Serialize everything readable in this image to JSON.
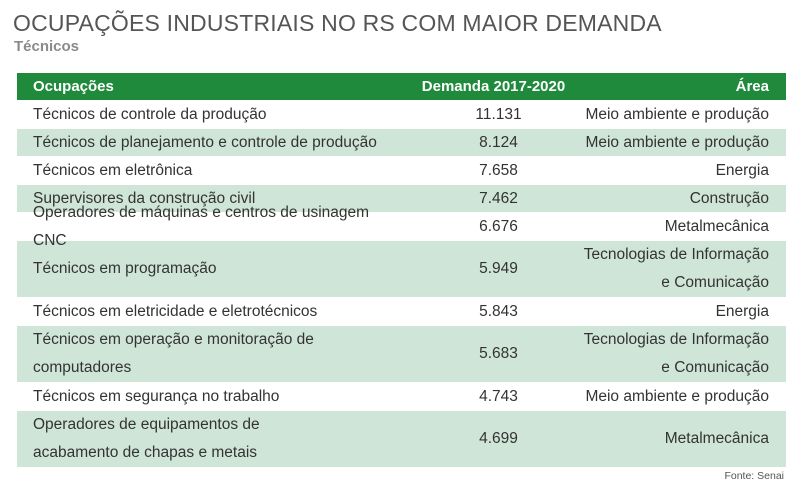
{
  "title": "OCUPAÇÕES INDUSTRIAIS NO RS COM MAIOR DEMANDA",
  "subtitle": "Técnicos",
  "table": {
    "headers": {
      "occupation": "Ocupações",
      "demand": "Demanda 2017-2020",
      "area": "Área"
    },
    "rows": [
      {
        "occupation": [
          "Técnicos de controle da produção"
        ],
        "demand": "11.131",
        "area": [
          "Meio ambiente e produção"
        ]
      },
      {
        "occupation": [
          "Técnicos de planejamento e controle de produção"
        ],
        "demand": "8.124",
        "area": [
          "Meio ambiente e produção"
        ]
      },
      {
        "occupation": [
          "Técnicos em eletrônica"
        ],
        "demand": "7.658",
        "area": [
          "Energia"
        ]
      },
      {
        "occupation": [
          "Supervisores da construção civil"
        ],
        "demand": "7.462",
        "area": [
          "Construção"
        ]
      },
      {
        "occupation": [
          "Operadores de máquinas e centros de usinagem CNC"
        ],
        "demand": "6.676",
        "area": [
          "Metalmecânica"
        ]
      },
      {
        "occupation": [
          "Técnicos em programação"
        ],
        "demand": "5.949",
        "area": [
          "Tecnologias de Informação",
          "e Comunicação"
        ]
      },
      {
        "occupation": [
          "Técnicos em eletricidade e eletrotécnicos"
        ],
        "demand": "5.843",
        "area": [
          "Energia"
        ]
      },
      {
        "occupation": [
          "Técnicos em operação e monitoração de computadores"
        ],
        "demand": "5.683",
        "area": [
          "Tecnologias de Informação",
          "e Comunicação"
        ]
      },
      {
        "occupation": [
          "Técnicos em segurança no trabalho"
        ],
        "demand": "4.743",
        "area": [
          "Meio ambiente e produção"
        ]
      },
      {
        "occupation": [
          "Operadores de equipamentos de",
          "acabamento de chapas e metais"
        ],
        "demand": "4.699",
        "area": [
          "Metalmecânica"
        ]
      }
    ]
  },
  "source": "Fonte: Senai",
  "colors": {
    "header_bg": "#1f8a3b",
    "row_alt_bg": "#cfe5d8",
    "row_bg": "#ffffff"
  }
}
